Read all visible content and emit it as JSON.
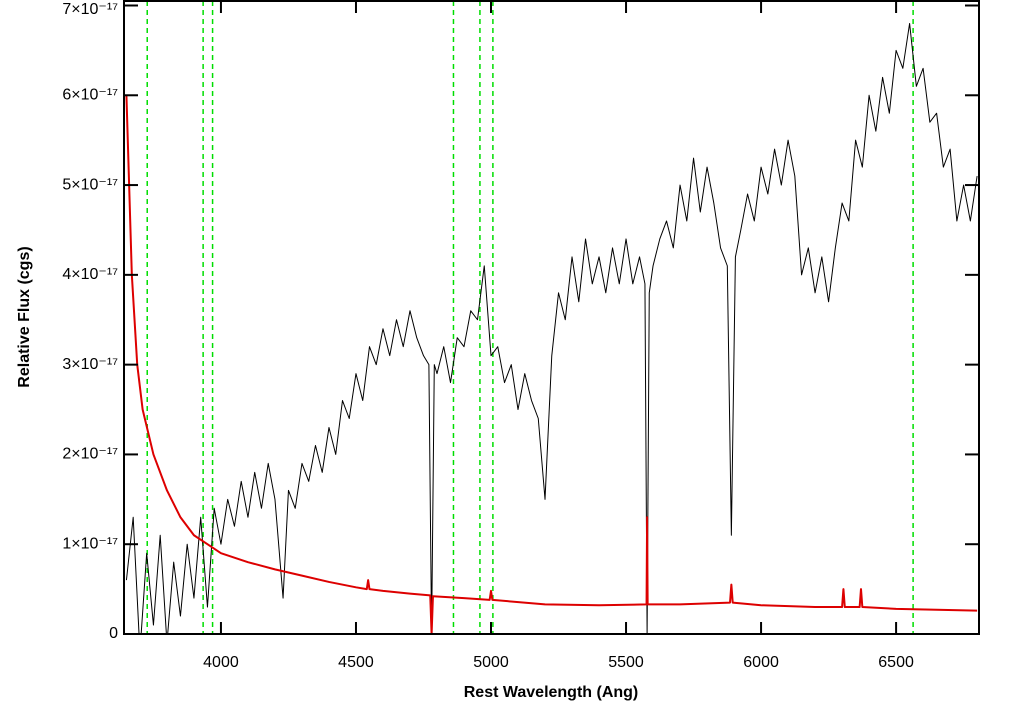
{
  "chart_data": {
    "type": "line",
    "x_label": "Rest Wavelength (Ang)",
    "y_label": "Relative Flux (cgs)",
    "xlim": [
      3641,
      6807
    ],
    "ylim": [
      0,
      7.05e-17
    ],
    "xticks": [
      4000,
      4500,
      5000,
      5500,
      6000,
      6500
    ],
    "yticks": [
      0,
      {
        "value": 1e-17,
        "label": "1×10⁻¹⁷"
      },
      {
        "value": 2e-17,
        "label": "2×10⁻¹⁷"
      },
      {
        "value": 3e-17,
        "label": "3×10⁻¹⁷"
      },
      {
        "value": 4e-17,
        "label": "4×10⁻¹⁷"
      },
      {
        "value": 5e-17,
        "label": "5×10⁻¹⁷"
      },
      {
        "value": 6e-17,
        "label": "6×10⁻¹⁷"
      },
      {
        "value": 7e-17,
        "label": "7×10⁻¹⁷"
      }
    ],
    "reference_lines": {
      "color": "#00dd00",
      "x": [
        3727,
        3934,
        3969,
        4861,
        4959,
        5007,
        6563
      ]
    },
    "series": [
      {
        "color": "#000000",
        "x": [
          3650,
          3675,
          3700,
          3725,
          3750,
          3775,
          3800,
          3825,
          3850,
          3875,
          3900,
          3925,
          3950,
          3975,
          4000,
          4025,
          4050,
          4075,
          4100,
          4125,
          4150,
          4175,
          4200,
          4230,
          4250,
          4275,
          4300,
          4325,
          4350,
          4375,
          4400,
          4425,
          4450,
          4475,
          4500,
          4525,
          4550,
          4575,
          4600,
          4625,
          4650,
          4675,
          4700,
          4725,
          4750,
          4770,
          4780,
          4790,
          4800,
          4825,
          4850,
          4875,
          4900,
          4925,
          4950,
          4975,
          5000,
          5025,
          5050,
          5075,
          5100,
          5125,
          5150,
          5175,
          5200,
          5225,
          5250,
          5275,
          5300,
          5325,
          5350,
          5375,
          5400,
          5425,
          5450,
          5475,
          5500,
          5525,
          5550,
          5570,
          5578,
          5586,
          5600,
          5625,
          5650,
          5675,
          5700,
          5725,
          5750,
          5775,
          5800,
          5825,
          5850,
          5875,
          5890,
          5905,
          5925,
          5950,
          5975,
          6000,
          6025,
          6050,
          6075,
          6100,
          6125,
          6150,
          6175,
          6200,
          6225,
          6250,
          6275,
          6300,
          6325,
          6350,
          6375,
          6400,
          6425,
          6450,
          6475,
          6500,
          6525,
          6550,
          6575,
          6600,
          6625,
          6650,
          6675,
          6700,
          6725,
          6750,
          6775,
          6800
        ],
        "values": [
          6e-18,
          1.3e-17,
          -2e-18,
          9e-18,
          1e-18,
          1.1e-17,
          -1e-18,
          8e-18,
          2e-18,
          1e-17,
          4e-18,
          1.3e-17,
          3e-18,
          1.4e-17,
          1e-17,
          1.5e-17,
          1.2e-17,
          1.7e-17,
          1.3e-17,
          1.8e-17,
          1.4e-17,
          1.9e-17,
          1.5e-17,
          4e-18,
          1.6e-17,
          1.4e-17,
          1.9e-17,
          1.7e-17,
          2.1e-17,
          1.8e-17,
          2.3e-17,
          2e-17,
          2.6e-17,
          2.4e-17,
          2.9e-17,
          2.6e-17,
          3.2e-17,
          3e-17,
          3.4e-17,
          3.1e-17,
          3.5e-17,
          3.2e-17,
          3.6e-17,
          3.3e-17,
          3.1e-17,
          3e-17,
          0,
          3e-17,
          2.9e-17,
          3.2e-17,
          2.8e-17,
          3.3e-17,
          3.2e-17,
          3.6e-17,
          3.5e-17,
          4.1e-17,
          3.1e-17,
          3.2e-17,
          2.8e-17,
          3e-17,
          2.5e-17,
          2.9e-17,
          2.6e-17,
          2.4e-17,
          1.5e-17,
          3.1e-17,
          3.8e-17,
          3.5e-17,
          4.2e-17,
          3.7e-17,
          4.4e-17,
          3.9e-17,
          4.2e-17,
          3.8e-17,
          4.3e-17,
          3.9e-17,
          4.4e-17,
          3.9e-17,
          4.2e-17,
          3.9e-17,
          0,
          3.8e-17,
          4.1e-17,
          4.4e-17,
          4.6e-17,
          4.3e-17,
          5e-17,
          4.6e-17,
          5.3e-17,
          4.7e-17,
          5.2e-17,
          4.8e-17,
          4.3e-17,
          4.1e-17,
          1.1e-17,
          4.2e-17,
          4.5e-17,
          4.9e-17,
          4.6e-17,
          5.2e-17,
          4.9e-17,
          5.4e-17,
          5e-17,
          5.5e-17,
          5.1e-17,
          4e-17,
          4.3e-17,
          3.8e-17,
          4.2e-17,
          3.7e-17,
          4.3e-17,
          4.8e-17,
          4.6e-17,
          5.5e-17,
          5.2e-17,
          6e-17,
          5.6e-17,
          6.2e-17,
          5.8e-17,
          6.5e-17,
          6.3e-17,
          6.8e-17,
          6.1e-17,
          6.3e-17,
          5.7e-17,
          5.8e-17,
          5.2e-17,
          5.4e-17,
          4.6e-17,
          5e-17,
          4.6e-17,
          5.1e-17
        ]
      },
      {
        "color": "#dd0000",
        "x": [
          3650,
          3660,
          3670,
          3690,
          3710,
          3750,
          3800,
          3850,
          3900,
          3950,
          4000,
          4100,
          4200,
          4300,
          4400,
          4500,
          4540,
          4545,
          4550,
          4600,
          4700,
          4775,
          4780,
          4785,
          4900,
          4995,
          5000,
          5005,
          5200,
          5400,
          5576,
          5578,
          5580,
          5700,
          5885,
          5890,
          5895,
          6000,
          6200,
          6300,
          6305,
          6310,
          6365,
          6370,
          6375,
          6500,
          6800
        ],
        "values": [
          6e-17,
          5e-17,
          4e-17,
          3e-17,
          2.5e-17,
          2e-17,
          1.6e-17,
          1.3e-17,
          1.1e-17,
          1e-17,
          9e-18,
          8e-18,
          7.2e-18,
          6.5e-18,
          5.8e-18,
          5.2e-18,
          5e-18,
          6e-18,
          5e-18,
          4.8e-18,
          4.5e-18,
          4.3e-18,
          0,
          4.2e-18,
          4e-18,
          3.8e-18,
          4.8e-18,
          3.8e-18,
          3.3e-18,
          3.2e-18,
          3.3e-18,
          1.3e-17,
          3.3e-18,
          3.3e-18,
          3.5e-18,
          5.5e-18,
          3.5e-18,
          3.2e-18,
          3e-18,
          3e-18,
          5e-18,
          3e-18,
          3e-18,
          5e-18,
          3e-18,
          2.8e-18,
          2.6e-18
        ]
      }
    ]
  }
}
